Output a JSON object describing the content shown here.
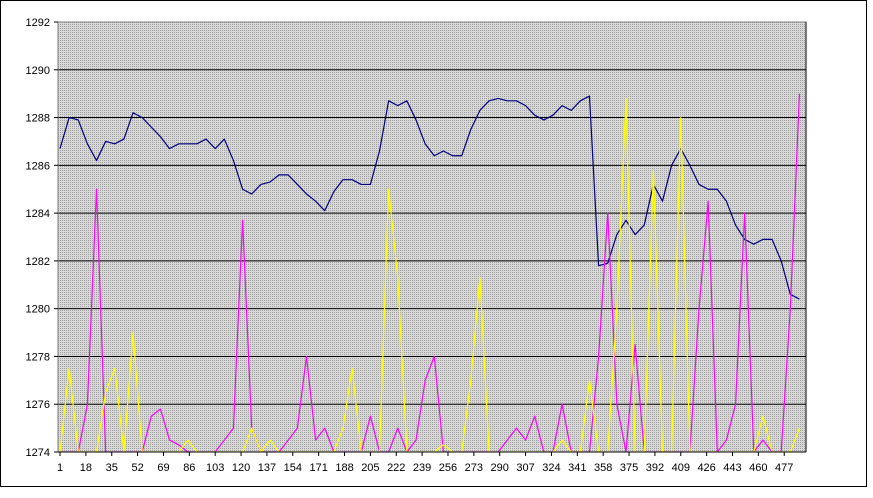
{
  "chart_data": {
    "type": "line",
    "x": [
      1,
      7,
      13,
      19,
      25,
      31,
      37,
      43,
      49,
      55,
      61,
      67,
      73,
      79,
      85,
      91,
      97,
      103,
      109,
      115,
      121,
      127,
      133,
      139,
      145,
      151,
      157,
      163,
      169,
      175,
      181,
      187,
      193,
      199,
      205,
      211,
      217,
      223,
      229,
      235,
      241,
      247,
      253,
      259,
      265,
      271,
      277,
      283,
      289,
      295,
      301,
      307,
      313,
      319,
      325,
      331,
      337,
      343,
      349,
      355,
      361,
      367,
      373,
      379,
      385,
      391,
      397,
      403,
      409,
      415,
      421,
      427,
      433,
      439,
      445,
      451,
      457,
      463,
      469,
      475,
      481,
      487
    ],
    "xlim": [
      1,
      490
    ],
    "xticks": [
      1,
      18,
      35,
      52,
      69,
      86,
      103,
      120,
      137,
      154,
      171,
      188,
      205,
      222,
      239,
      256,
      273,
      290,
      307,
      324,
      341,
      358,
      375,
      392,
      409,
      426,
      443,
      460,
      477
    ],
    "ylim": [
      1274,
      1292
    ],
    "yticks": [
      1274,
      1276,
      1278,
      1280,
      1282,
      1284,
      1286,
      1288,
      1290,
      1292
    ],
    "grid": true,
    "series": [
      {
        "color": "#000080",
        "values": [
          1286.7,
          1288.0,
          1287.9,
          1286.9,
          1286.2,
          1287.0,
          1286.9,
          1287.1,
          1288.2,
          1288.0,
          1287.6,
          1287.2,
          1286.7,
          1286.9,
          1286.9,
          1286.9,
          1287.1,
          1286.7,
          1287.1,
          1286.2,
          1285.0,
          1284.8,
          1285.2,
          1285.3,
          1285.6,
          1285.6,
          1285.2,
          1284.8,
          1284.5,
          1284.1,
          1284.9,
          1285.4,
          1285.4,
          1285.2,
          1285.2,
          1286.6,
          1288.7,
          1288.5,
          1288.7,
          1287.9,
          1286.9,
          1286.4,
          1286.6,
          1286.4,
          1286.4,
          1287.5,
          1288.3,
          1288.7,
          1288.8,
          1288.7,
          1288.7,
          1288.5,
          1288.1,
          1287.9,
          1288.1,
          1288.5,
          1288.3,
          1288.7,
          1288.9,
          1281.8,
          1281.9,
          1283.1,
          1283.7,
          1283.1,
          1283.5,
          1285.2,
          1284.5,
          1286.0,
          1286.7,
          1286.0,
          1285.2,
          1285.0,
          1285.0,
          1284.5,
          1283.5,
          1282.9,
          1282.7,
          1282.9,
          1282.9,
          1282.0,
          1280.6,
          1280.4
        ]
      },
      {
        "color": "#ff00ff",
        "values": [
          1274,
          1274,
          1274,
          1276,
          1285,
          1274,
          1274,
          1274,
          1274,
          1274,
          1275.5,
          1275.8,
          1274.5,
          1274.3,
          1274,
          1274,
          1274,
          1274,
          1274.5,
          1275,
          1283.7,
          1275,
          1274,
          1274,
          1274,
          1274.5,
          1275,
          1278,
          1274.5,
          1275,
          1274,
          1274,
          1274,
          1274,
          1275.5,
          1274,
          1274,
          1275,
          1274,
          1274.5,
          1277,
          1278,
          1274,
          1274,
          1274,
          1274,
          1274,
          1274,
          1274,
          1274.5,
          1275,
          1274.5,
          1275.5,
          1274,
          1274,
          1276,
          1274,
          1274,
          1274,
          1278,
          1284,
          1276,
          1274,
          1278.5,
          1274,
          1274,
          1274,
          1274,
          1274,
          1274,
          1280,
          1284.5,
          1274,
          1274.5,
          1276,
          1284,
          1274,
          1274.5,
          1274,
          1274,
          1280,
          1289
        ]
      },
      {
        "color": "#ffff00",
        "values": [
          1274,
          1277.5,
          1274,
          1274,
          1274,
          1276.5,
          1277.5,
          1274,
          1279,
          1274,
          1274,
          1274,
          1274,
          1274,
          1274.5,
          1274,
          1274,
          1274,
          1274,
          1274,
          1274,
          1275,
          1274,
          1274.5,
          1274,
          1274,
          1274,
          1274,
          1274,
          1274,
          1274,
          1275,
          1277.5,
          1274,
          1274,
          1274,
          1285,
          1281.3,
          1274,
          1274,
          1274,
          1274,
          1274.3,
          1274,
          1274,
          1277,
          1281.3,
          1274,
          1274,
          1274,
          1274,
          1274,
          1274,
          1274,
          1274,
          1274.5,
          1274,
          1274,
          1277,
          1274,
          1274,
          1280,
          1288.8,
          1274,
          1274,
          1285.8,
          1274,
          1274,
          1288,
          1274,
          1274,
          1274,
          1274,
          1274,
          1274,
          1274,
          1274,
          1275.5,
          1274,
          1274,
          1274,
          1275
        ]
      }
    ]
  }
}
